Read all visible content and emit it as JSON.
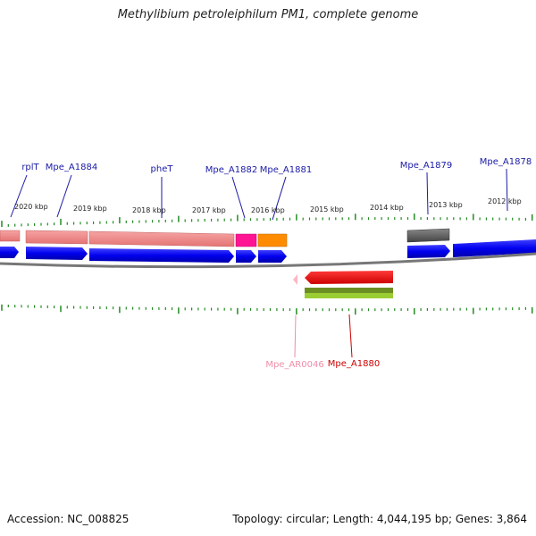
{
  "title": "Methylibium petroleiphilum PM1, complete genome",
  "footer": {
    "accession": "Accession: NC_008825",
    "summary": "Topology: circular; Length: 4,044,195 bp; Genes: 3,864"
  },
  "axis_labels": [
    "2020 kbp",
    "2019 kbp",
    "2018 kbp",
    "2017 kbp",
    "2016 kbp",
    "2015 kbp",
    "2014 kbp",
    "2013 kbp",
    "2012 kbp"
  ],
  "gene_labels_top": [
    "rplT",
    "Mpe_A1884",
    "pheT",
    "Mpe_A1882",
    "Mpe_A1881",
    "Mpe_A1879",
    "Mpe_A1878"
  ],
  "gene_labels_bottom": [
    "Mpe_AR0046",
    "Mpe_A1880"
  ],
  "colors": {
    "label_blue": "#1a1aa6",
    "cds_blue": "#0a0ae6",
    "gene_salmon": "#f08080",
    "gene_magenta": "#ff1493",
    "gene_orange": "#ff8c00",
    "gene_gray": "#555555",
    "gene_red": "#ee0000",
    "gene_green": "#6b8e23",
    "gene_lightgreen": "#9acd32",
    "rna_pink": "#ffb6c1",
    "tick_green": "#228b22",
    "backbone_gray": "#777777"
  }
}
